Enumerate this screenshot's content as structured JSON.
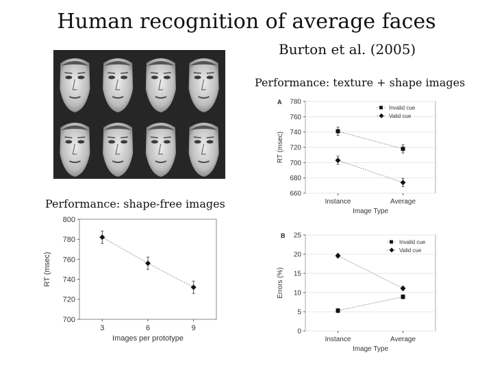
{
  "slide": {
    "title": "Human recognition of average faces",
    "citation": "Burton et al. (2005)",
    "caption_texture_shape": "Performance: texture + shape images",
    "caption_shape_free": "Performance: shape-free images"
  },
  "chart_data": [
    {
      "type": "line",
      "panel_label": "A",
      "categories": [
        "Instance",
        "Average"
      ],
      "series": [
        {
          "name": "Invalid cue",
          "marker": "square",
          "values": [
            741,
            718
          ]
        },
        {
          "name": "Valid cue",
          "marker": "diamond",
          "values": [
            703,
            674
          ]
        }
      ],
      "yticks": [
        660,
        680,
        700,
        720,
        740,
        760,
        780
      ],
      "ylim": [
        660,
        780
      ],
      "xlabel": "Image Type",
      "ylabel": "RT (msec)"
    },
    {
      "type": "line",
      "categories": [
        "3",
        "6",
        "9"
      ],
      "series": [
        {
          "name": "",
          "marker": "diamond",
          "values": [
            782,
            756,
            732
          ]
        }
      ],
      "yticks": [
        700,
        720,
        740,
        760,
        780,
        800
      ],
      "ylim": [
        700,
        800
      ],
      "xlabel": "Images per prototype",
      "ylabel": "RT (msec)"
    },
    {
      "type": "line",
      "panel_label": "B",
      "categories": [
        "Instance",
        "Average"
      ],
      "series": [
        {
          "name": "Invalid cue",
          "marker": "square",
          "values": [
            5.3,
            8.9
          ]
        },
        {
          "name": "Valid cue",
          "marker": "diamond",
          "values": [
            19.6,
            11.1
          ]
        }
      ],
      "yticks": [
        0,
        5,
        10,
        15,
        20,
        25
      ],
      "ylim": [
        0,
        25
      ],
      "xlabel": "Image Type",
      "ylabel": "Errors (%)"
    }
  ]
}
